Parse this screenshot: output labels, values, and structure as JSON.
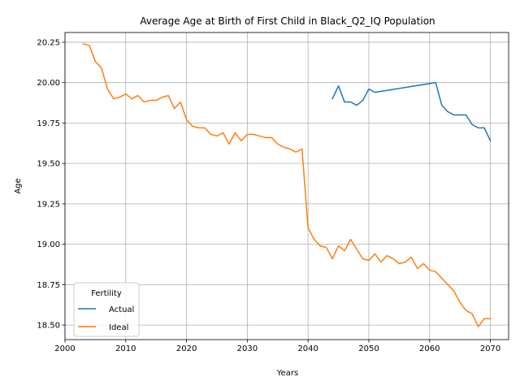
{
  "chart_data": {
    "type": "line",
    "title": "Average Age at Birth of First Child in Black_Q2_IQ Population",
    "xlabel": "Years",
    "ylabel": "Age",
    "xlim": [
      2000,
      2073
    ],
    "ylim": [
      18.41,
      20.31
    ],
    "xticks": [
      "2000",
      "2010",
      "2020",
      "2030",
      "2040",
      "2050",
      "2060",
      "2070"
    ],
    "yticks": [
      "18.50",
      "18.75",
      "19.00",
      "19.25",
      "19.50",
      "19.75",
      "20.00",
      "20.25"
    ],
    "grid": true,
    "legend": {
      "title": "Fertility",
      "position": "lower-left"
    },
    "series": [
      {
        "name": "Actual",
        "color": "#1f77b4",
        "x": [
          2044,
          2045,
          2046,
          2047,
          2048,
          2049,
          2050,
          2051,
          2061,
          2062,
          2063,
          2064,
          2065,
          2066,
          2067,
          2068,
          2069,
          2070
        ],
        "y": [
          19.9,
          19.98,
          19.88,
          19.88,
          19.86,
          19.89,
          19.96,
          19.94,
          20.0,
          19.86,
          19.82,
          19.8,
          19.8,
          19.8,
          19.74,
          19.72,
          19.72,
          19.64
        ]
      },
      {
        "name": "Ideal",
        "color": "#ff7f0e",
        "x": [
          2003,
          2004,
          2005,
          2006,
          2007,
          2008,
          2009,
          2010,
          2011,
          2012,
          2013,
          2014,
          2015,
          2016,
          2017,
          2018,
          2019,
          2020,
          2021,
          2022,
          2023,
          2024,
          2025,
          2026,
          2027,
          2028,
          2029,
          2030,
          2031,
          2032,
          2033,
          2034,
          2035,
          2036,
          2037,
          2038,
          2039,
          2040,
          2041,
          2042,
          2043,
          2044,
          2045,
          2046,
          2047,
          2048,
          2049,
          2050,
          2051,
          2052,
          2053,
          2054,
          2055,
          2056,
          2057,
          2058,
          2059,
          2060,
          2061,
          2062,
          2063,
          2064,
          2065,
          2066,
          2067,
          2068,
          2069,
          2070
        ],
        "y": [
          20.24,
          20.23,
          20.13,
          20.09,
          19.96,
          19.9,
          19.91,
          19.93,
          19.9,
          19.92,
          19.88,
          19.89,
          19.89,
          19.91,
          19.92,
          19.84,
          19.88,
          19.77,
          19.73,
          19.72,
          19.72,
          19.68,
          19.67,
          19.69,
          19.62,
          19.69,
          19.64,
          19.68,
          19.68,
          19.67,
          19.66,
          19.66,
          19.62,
          19.6,
          19.59,
          19.57,
          19.59,
          19.1,
          19.03,
          18.99,
          18.98,
          18.91,
          18.99,
          18.96,
          19.03,
          18.97,
          18.91,
          18.9,
          18.94,
          18.89,
          18.93,
          18.91,
          18.88,
          18.89,
          18.92,
          18.85,
          18.88,
          18.84,
          18.83,
          18.79,
          18.75,
          18.71,
          18.64,
          18.59,
          18.57,
          18.49,
          18.54,
          18.54
        ]
      }
    ]
  }
}
